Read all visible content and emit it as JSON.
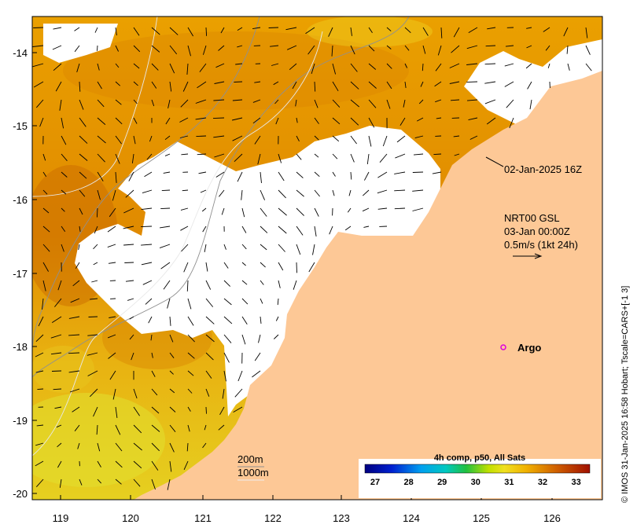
{
  "map": {
    "x_ticks": [
      "119",
      "120",
      "121",
      "122",
      "123",
      "124",
      "125",
      "126"
    ],
    "y_ticks": [
      "-14",
      "-15",
      "-16",
      "-17",
      "-18",
      "-19",
      "-20"
    ],
    "swath_time": "02-Jan-2025 16Z",
    "current_model": "NRT00 GSL",
    "current_time": "03-Jan 00:00Z",
    "current_scale": "0.5m/s (1kt 24h)",
    "argo_label": "Argo",
    "isobath_200": "200m",
    "isobath_1000": "1000m",
    "credit": "© IMOS 31-Jan-2025 16:58 Hobart; Tscale=CARS+[-1 3]",
    "colors": {
      "land": "#fdc896",
      "sea_warm": "#d97a00",
      "sea_mid": "#eaa600",
      "sea_cool": "#e8d21a",
      "argo": "#dd00dd"
    }
  },
  "colorbar": {
    "title": "4h comp, p50, All Sats",
    "ticks": [
      "27",
      "28",
      "29",
      "30",
      "31",
      "32",
      "33"
    ]
  }
}
